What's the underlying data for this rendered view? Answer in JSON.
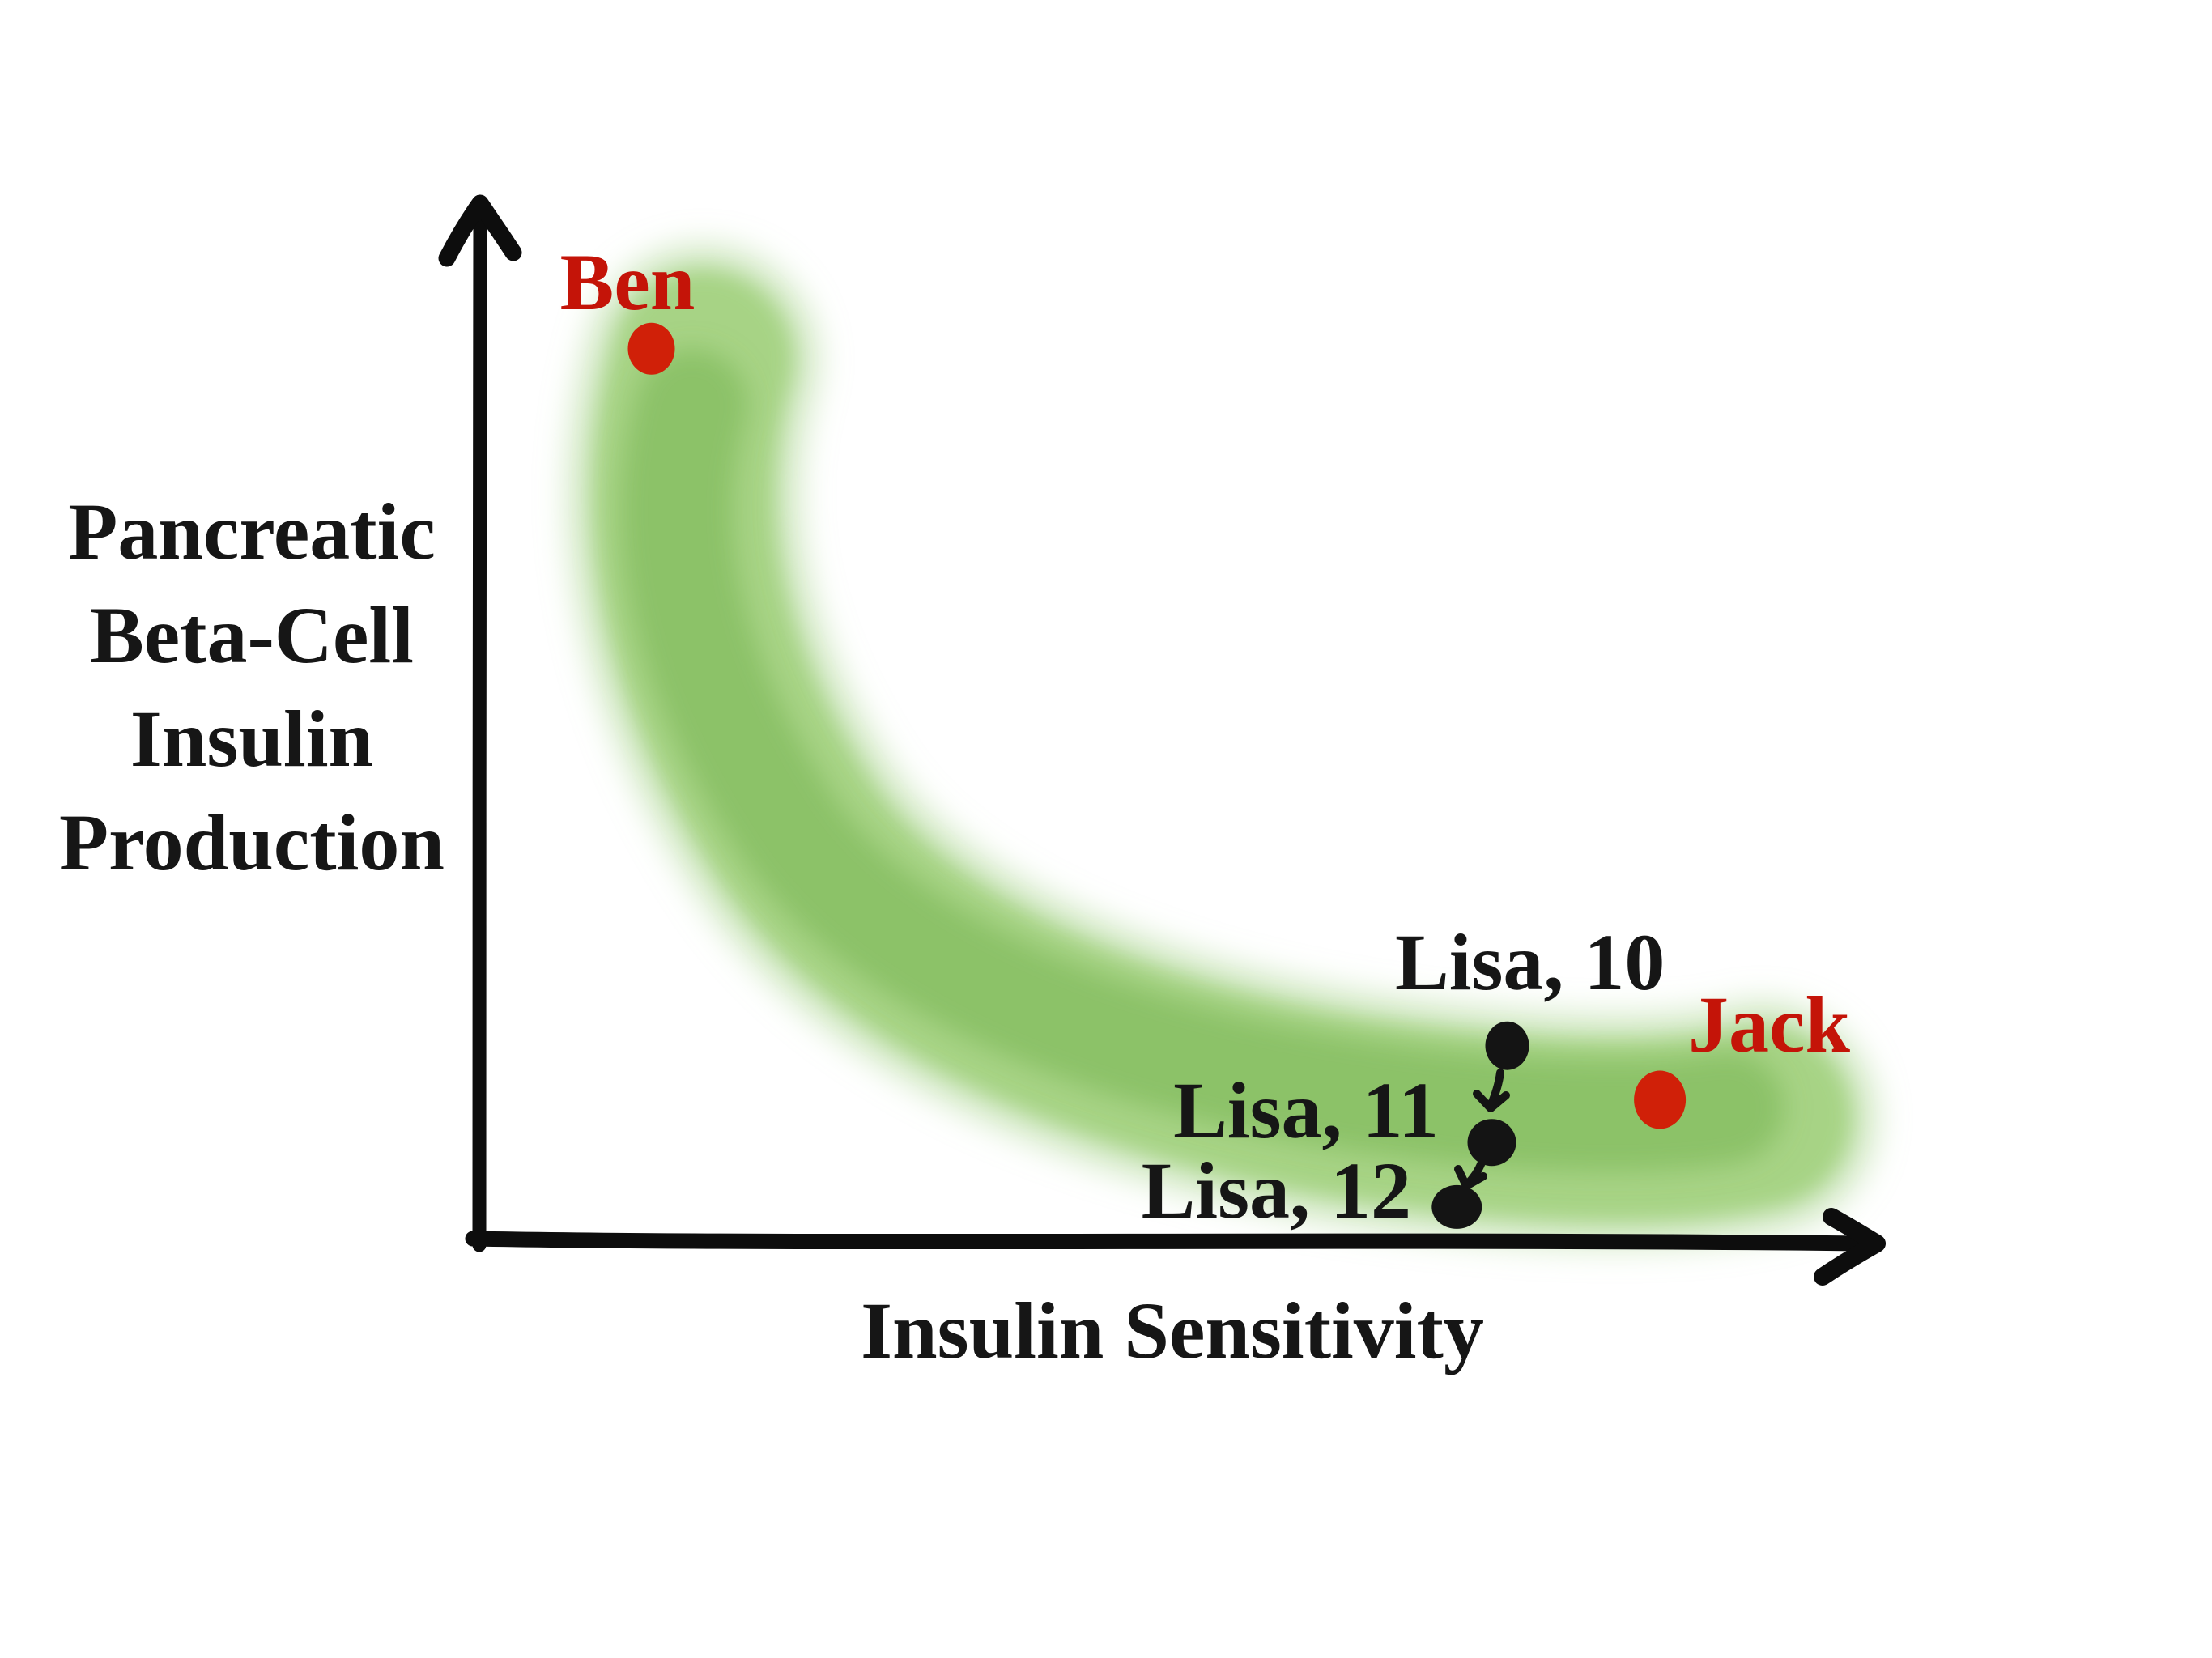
{
  "figure": {
    "background": "#ffffff",
    "colors": {
      "axis_ink": "#0d0d0d",
      "label_black": "#161616",
      "label_red": "#c41408",
      "dot_red": "#d02008",
      "dot_black": "#141414",
      "band_green_core": "#6fb149",
      "band_green_mid": "#8dc660",
      "band_green_wash": "#b3d99b"
    },
    "y_axis": {
      "label_lines": [
        "Pancreatic",
        "Beta-Cell",
        "Insulin",
        "Production"
      ]
    },
    "x_axis": {
      "label": "Insulin Sensitivity"
    },
    "point_labels": {
      "ben": "Ben",
      "jack": "Jack",
      "lisa10": "Lisa, 10",
      "lisa11": "Lisa, 11",
      "lisa12": "Lisa, 12"
    }
  },
  "chart_data": {
    "type": "scatter",
    "title": "",
    "xlabel": "Insulin Sensitivity",
    "ylabel": "Pancreatic Beta-Cell Insulin Production",
    "style": "hand-drawn sketch, no ticks, no grid, qualitative axes",
    "x_axis": {
      "quantitative": false,
      "ticks": []
    },
    "y_axis": {
      "quantitative": false,
      "ticks": []
    },
    "grid": false,
    "legend": false,
    "band": {
      "name": "normal compensation curve",
      "style": "thick hand-painted watercolor brush band",
      "color": "#8dc660",
      "shape": "sweeps from top-left (low sensitivity, high insulin production) curving down to bottom-right (high sensitivity, low production), hyperbola-like",
      "width_norm": 0.19,
      "centerline_norm": [
        [
          0.161,
          0.846
        ],
        [
          0.139,
          0.694
        ],
        [
          0.179,
          0.531
        ],
        [
          0.228,
          0.391
        ],
        [
          0.324,
          0.274
        ],
        [
          0.48,
          0.151
        ],
        [
          0.659,
          0.12
        ],
        [
          0.815,
          0.107
        ],
        [
          0.916,
          0.118
        ]
      ]
    },
    "points": [
      {
        "label": "Ben",
        "group": "highlight",
        "color": "#d02008",
        "x": 0.124,
        "y": 0.857
      },
      {
        "label": "Jack",
        "group": "highlight",
        "color": "#d02008",
        "x": 0.844,
        "y": 0.135
      },
      {
        "label": "Lisa, 10",
        "group": "progression",
        "color": "#141414",
        "x": 0.735,
        "y": 0.187
      },
      {
        "label": "Lisa, 11",
        "group": "progression",
        "color": "#141414",
        "x": 0.724,
        "y": 0.094
      },
      {
        "label": "Lisa, 12",
        "group": "progression",
        "color": "#141414",
        "x": 0.699,
        "y": 0.032
      }
    ],
    "annotations": [
      {
        "type": "arrow",
        "from": "Lisa, 10",
        "to": "Lisa, 11",
        "direction": "down"
      },
      {
        "type": "arrow",
        "from": "Lisa, 11",
        "to": "Lisa, 12",
        "direction": "down-left"
      }
    ]
  }
}
